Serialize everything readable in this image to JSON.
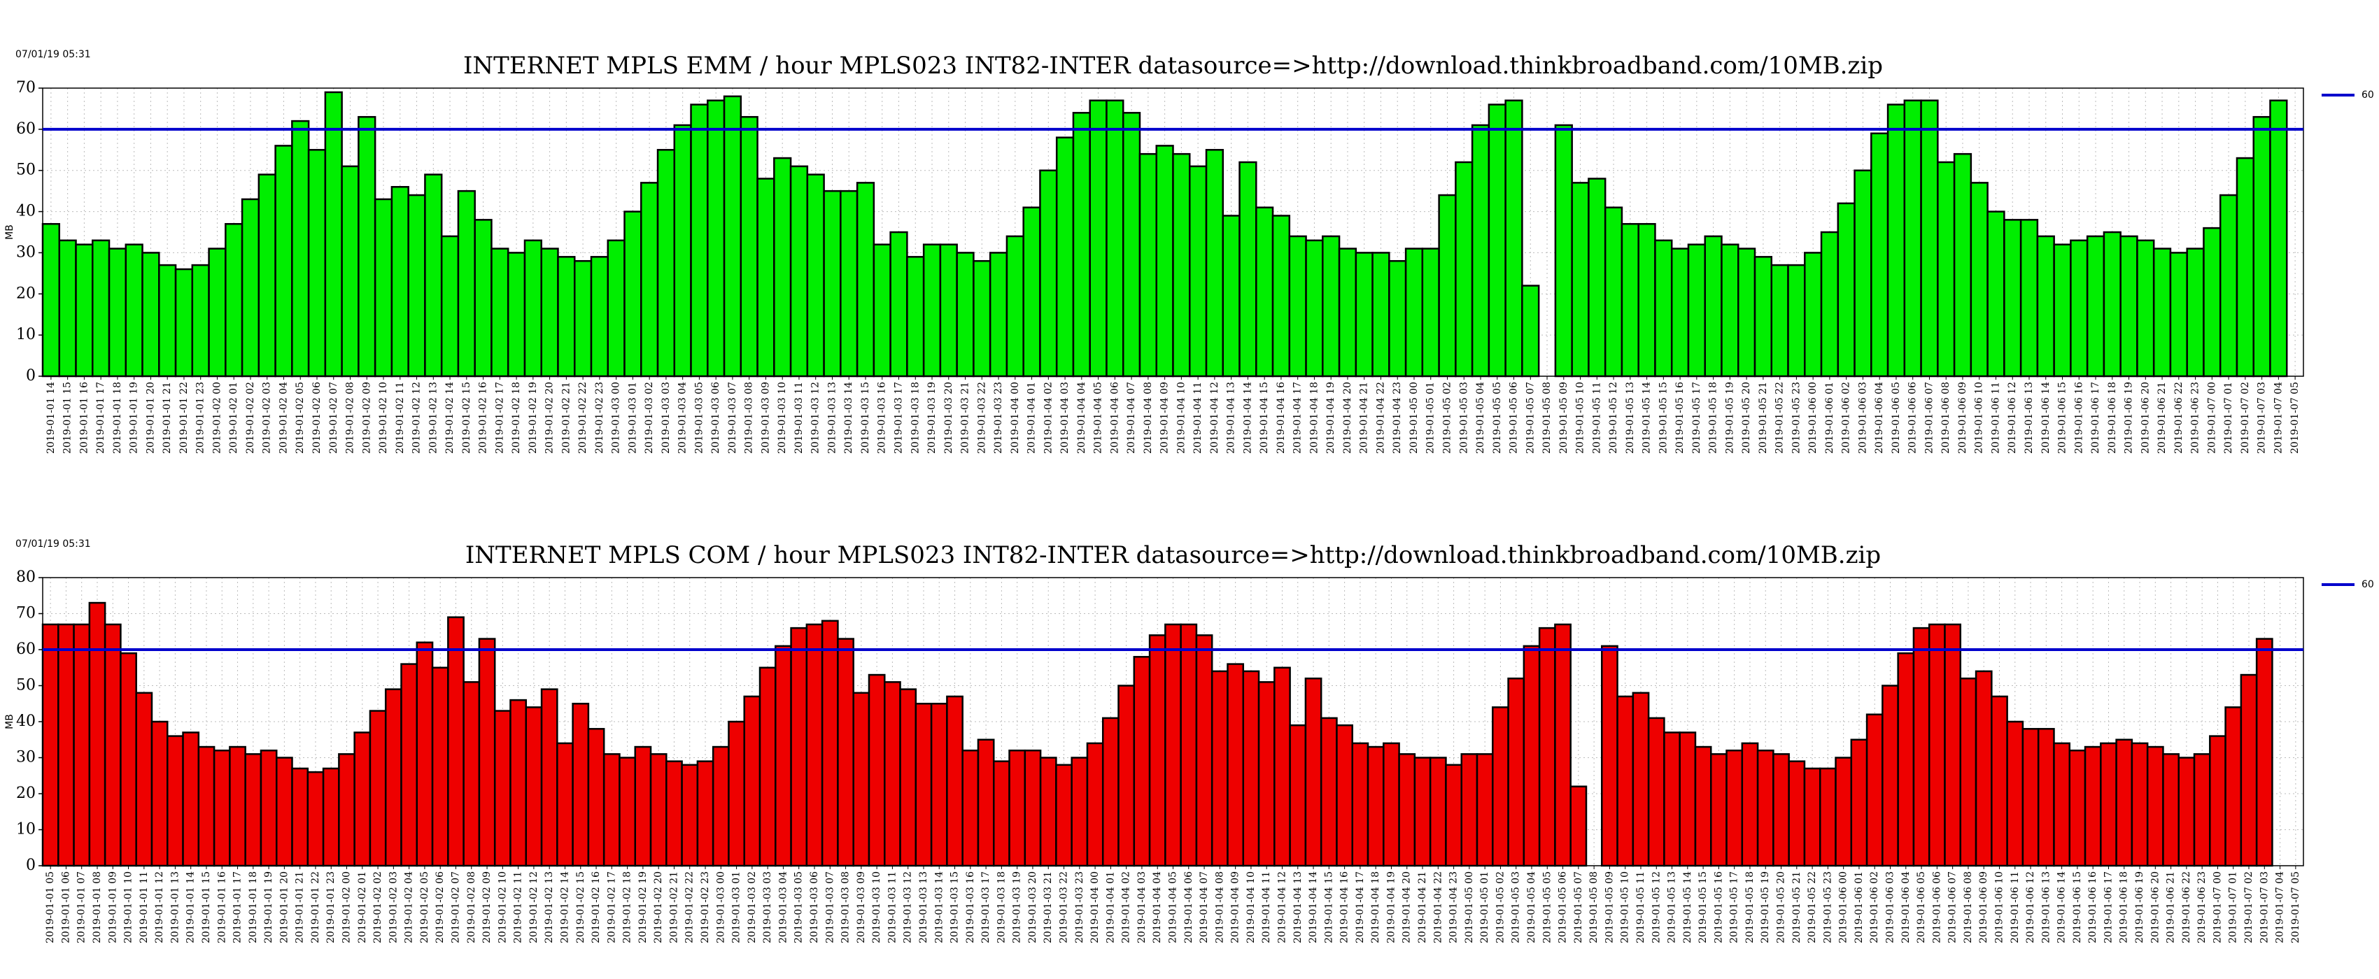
{
  "chart_data": [
    {
      "type": "bar",
      "timestamp": "07/01/19 05:31",
      "title": "INTERNET MPLS EMM / hour MPLS023 INT82-INTER datasource=>http://download.thinkbroadband.com/10MB.zip",
      "ylabel": "MB",
      "color": "#00ee00",
      "categories": [
        "2019-01-01 14",
        "2019-01-01 15",
        "2019-01-01 16",
        "2019-01-01 17",
        "2019-01-01 18",
        "2019-01-01 19",
        "2019-01-01 20",
        "2019-01-01 21",
        "2019-01-01 22",
        "2019-01-01 23",
        "2019-01-02 00",
        "2019-01-02 01",
        "2019-01-02 02",
        "2019-01-02 03",
        "2019-01-02 04",
        "2019-01-02 05",
        "2019-01-02 06",
        "2019-01-02 07",
        "2019-01-02 08",
        "2019-01-02 09",
        "2019-01-02 10",
        "2019-01-02 11",
        "2019-01-02 12",
        "2019-01-02 13",
        "2019-01-02 14",
        "2019-01-02 15",
        "2019-01-02 16",
        "2019-01-02 17",
        "2019-01-02 18",
        "2019-01-02 19",
        "2019-01-02 20",
        "2019-01-02 21",
        "2019-01-02 22",
        "2019-01-02 23",
        "2019-01-03 00",
        "2019-01-03 01",
        "2019-01-03 02",
        "2019-01-03 03",
        "2019-01-03 04",
        "2019-01-03 05",
        "2019-01-03 06",
        "2019-01-03 07",
        "2019-01-03 08",
        "2019-01-03 09",
        "2019-01-03 10",
        "2019-01-03 11",
        "2019-01-03 12",
        "2019-01-03 13",
        "2019-01-03 14",
        "2019-01-03 15",
        "2019-01-03 16",
        "2019-01-03 17",
        "2019-01-03 18",
        "2019-01-03 19",
        "2019-01-03 20",
        "2019-01-03 21",
        "2019-01-03 22",
        "2019-01-03 23",
        "2019-01-04 00",
        "2019-01-04 01",
        "2019-01-04 02",
        "2019-01-04 03",
        "2019-01-04 04",
        "2019-01-04 05",
        "2019-01-04 06",
        "2019-01-04 07",
        "2019-01-04 08",
        "2019-01-04 09",
        "2019-01-04 10",
        "2019-01-04 11",
        "2019-01-04 12",
        "2019-01-04 13",
        "2019-01-04 14",
        "2019-01-04 15",
        "2019-01-04 16",
        "2019-01-04 17",
        "2019-01-04 18",
        "2019-01-04 19",
        "2019-01-04 20",
        "2019-01-04 21",
        "2019-01-04 22",
        "2019-01-04 23",
        "2019-01-05 00",
        "2019-01-05 01",
        "2019-01-05 02",
        "2019-01-05 03",
        "2019-01-05 04",
        "2019-01-05 05",
        "2019-01-05 06",
        "2019-01-05 07",
        "2019-01-05 08",
        "2019-01-05 09",
        "2019-01-05 10",
        "2019-01-05 11",
        "2019-01-05 12",
        "2019-01-05 13",
        "2019-01-05 14",
        "2019-01-05 15",
        "2019-01-05 16",
        "2019-01-05 17",
        "2019-01-05 18",
        "2019-01-05 19",
        "2019-01-05 20",
        "2019-01-05 21",
        "2019-01-05 22",
        "2019-01-05 23",
        "2019-01-06 00",
        "2019-01-06 01",
        "2019-01-06 02",
        "2019-01-06 03",
        "2019-01-06 04",
        "2019-01-06 05",
        "2019-01-06 06",
        "2019-01-06 07",
        "2019-01-06 08",
        "2019-01-06 09",
        "2019-01-06 10",
        "2019-01-06 11",
        "2019-01-06 12",
        "2019-01-06 13",
        "2019-01-06 14",
        "2019-01-06 15",
        "2019-01-06 16",
        "2019-01-06 17",
        "2019-01-06 18",
        "2019-01-06 19",
        "2019-01-06 20",
        "2019-01-06 21",
        "2019-01-06 22",
        "2019-01-06 23",
        "2019-01-07 00",
        "2019-01-07 01",
        "2019-01-07 02",
        "2019-01-07 03",
        "2019-01-07 04",
        "2019-01-07 05"
      ],
      "values": [
        37,
        33,
        32,
        33,
        31,
        32,
        30,
        27,
        26,
        27,
        31,
        37,
        43,
        49,
        56,
        62,
        55,
        69,
        51,
        63,
        43,
        46,
        44,
        49,
        34,
        45,
        38,
        31,
        30,
        33,
        31,
        29,
        28,
        29,
        33,
        40,
        47,
        55,
        61,
        66,
        67,
        68,
        63,
        48,
        53,
        51,
        49,
        45,
        45,
        47,
        32,
        35,
        29,
        32,
        32,
        30,
        28,
        30,
        34,
        41,
        50,
        58,
        64,
        67,
        67,
        64,
        54,
        56,
        54,
        51,
        55,
        39,
        52,
        41,
        39,
        34,
        33,
        34,
        31,
        30,
        30,
        28,
        31,
        31,
        44,
        52,
        61,
        66,
        67,
        22,
        null,
        61,
        47,
        48,
        41,
        37,
        37,
        33,
        31,
        32,
        34,
        32,
        31,
        29,
        27,
        27,
        30,
        35,
        42,
        50,
        59,
        66,
        67,
        67,
        52,
        54,
        47,
        40,
        38,
        38,
        34,
        32,
        33,
        34,
        35,
        34,
        33,
        31,
        30,
        31,
        36,
        44,
        53,
        63,
        67,
        null
      ],
      "ylim": [
        0,
        70
      ],
      "yticks": [
        0,
        10,
        20,
        30,
        40,
        50,
        60,
        70
      ],
      "grid": true,
      "threshold": {
        "value": 60,
        "color": "#0000cc"
      }
    },
    {
      "type": "bar",
      "timestamp": "07/01/19 05:31",
      "title": "INTERNET MPLS COM / hour MPLS023 INT82-INTER datasource=>http://download.thinkbroadband.com/10MB.zip",
      "ylabel": "MB",
      "color": "#ee0000",
      "categories": [
        "2019-01-01 05",
        "2019-01-01 06",
        "2019-01-01 07",
        "2019-01-01 08",
        "2019-01-01 09",
        "2019-01-01 10",
        "2019-01-01 11",
        "2019-01-01 12",
        "2019-01-01 13",
        "2019-01-01 14",
        "2019-01-01 15",
        "2019-01-01 16",
        "2019-01-01 17",
        "2019-01-01 18",
        "2019-01-01 19",
        "2019-01-01 20",
        "2019-01-01 21",
        "2019-01-01 22",
        "2019-01-01 23",
        "2019-01-02 00",
        "2019-01-02 01",
        "2019-01-02 02",
        "2019-01-02 03",
        "2019-01-02 04",
        "2019-01-02 05",
        "2019-01-02 06",
        "2019-01-02 07",
        "2019-01-02 08",
        "2019-01-02 09",
        "2019-01-02 10",
        "2019-01-02 11",
        "2019-01-02 12",
        "2019-01-02 13",
        "2019-01-02 14",
        "2019-01-02 15",
        "2019-01-02 16",
        "2019-01-02 17",
        "2019-01-02 18",
        "2019-01-02 19",
        "2019-01-02 20",
        "2019-01-02 21",
        "2019-01-02 22",
        "2019-01-02 23",
        "2019-01-03 00",
        "2019-01-03 01",
        "2019-01-03 02",
        "2019-01-03 03",
        "2019-01-03 04",
        "2019-01-03 05",
        "2019-01-03 06",
        "2019-01-03 07",
        "2019-01-03 08",
        "2019-01-03 09",
        "2019-01-03 10",
        "2019-01-03 11",
        "2019-01-03 12",
        "2019-01-03 13",
        "2019-01-03 14",
        "2019-01-03 15",
        "2019-01-03 16",
        "2019-01-03 17",
        "2019-01-03 18",
        "2019-01-03 19",
        "2019-01-03 20",
        "2019-01-03 21",
        "2019-01-03 22",
        "2019-01-03 23",
        "2019-01-04 00",
        "2019-01-04 01",
        "2019-01-04 02",
        "2019-01-04 03",
        "2019-01-04 04",
        "2019-01-04 05",
        "2019-01-04 06",
        "2019-01-04 07",
        "2019-01-04 08",
        "2019-01-04 09",
        "2019-01-04 10",
        "2019-01-04 11",
        "2019-01-04 12",
        "2019-01-04 13",
        "2019-01-04 14",
        "2019-01-04 15",
        "2019-01-04 16",
        "2019-01-04 17",
        "2019-01-04 18",
        "2019-01-04 19",
        "2019-01-04 20",
        "2019-01-04 21",
        "2019-01-04 22",
        "2019-01-04 23",
        "2019-01-05 00",
        "2019-01-05 01",
        "2019-01-05 02",
        "2019-01-05 03",
        "2019-01-05 04",
        "2019-01-05 05",
        "2019-01-05 06",
        "2019-01-05 07",
        "2019-01-05 08",
        "2019-01-05 09",
        "2019-01-05 10",
        "2019-01-05 11",
        "2019-01-05 12",
        "2019-01-05 13",
        "2019-01-05 14",
        "2019-01-05 15",
        "2019-01-05 16",
        "2019-01-05 17",
        "2019-01-05 18",
        "2019-01-05 19",
        "2019-01-05 20",
        "2019-01-05 21",
        "2019-01-05 22",
        "2019-01-05 23",
        "2019-01-06 00",
        "2019-01-06 01",
        "2019-01-06 02",
        "2019-01-06 03",
        "2019-01-06 04",
        "2019-01-06 05",
        "2019-01-06 06",
        "2019-01-06 07",
        "2019-01-06 08",
        "2019-01-06 09",
        "2019-01-06 10",
        "2019-01-06 11",
        "2019-01-06 12",
        "2019-01-06 13",
        "2019-01-06 14",
        "2019-01-06 15",
        "2019-01-06 16",
        "2019-01-06 17",
        "2019-01-06 18",
        "2019-01-06 19",
        "2019-01-06 20",
        "2019-01-06 21",
        "2019-01-06 22",
        "2019-01-06 23",
        "2019-01-07 00",
        "2019-01-07 01",
        "2019-01-07 02",
        "2019-01-07 03",
        "2019-01-07 04",
        "2019-01-07 05"
      ],
      "values": [
        67,
        67,
        67,
        73,
        67,
        59,
        48,
        40,
        36,
        37,
        33,
        32,
        33,
        31,
        32,
        30,
        27,
        26,
        27,
        31,
        37,
        43,
        49,
        56,
        62,
        55,
        69,
        51,
        63,
        43,
        46,
        44,
        49,
        34,
        45,
        38,
        31,
        30,
        33,
        31,
        29,
        28,
        29,
        33,
        40,
        47,
        55,
        61,
        66,
        67,
        68,
        63,
        48,
        53,
        51,
        49,
        45,
        45,
        47,
        32,
        35,
        29,
        32,
        32,
        30,
        28,
        30,
        34,
        41,
        50,
        58,
        64,
        67,
        67,
        64,
        54,
        56,
        54,
        51,
        55,
        39,
        52,
        41,
        39,
        34,
        33,
        34,
        31,
        30,
        30,
        28,
        31,
        31,
        44,
        52,
        61,
        66,
        67,
        22,
        null,
        61,
        47,
        48,
        41,
        37,
        37,
        33,
        31,
        32,
        34,
        32,
        31,
        29,
        27,
        27,
        30,
        35,
        42,
        50,
        59,
        66,
        67,
        67,
        52,
        54,
        47,
        40,
        38,
        38,
        34,
        32,
        33,
        34,
        35,
        34,
        33,
        31,
        30,
        31,
        36,
        44,
        53,
        63,
        null,
        null
      ],
      "ylim": [
        0,
        80
      ],
      "yticks": [
        0,
        10,
        20,
        30,
        40,
        50,
        60,
        70,
        80
      ],
      "grid": true,
      "threshold": {
        "value": 60,
        "color": "#0000cc"
      }
    }
  ]
}
